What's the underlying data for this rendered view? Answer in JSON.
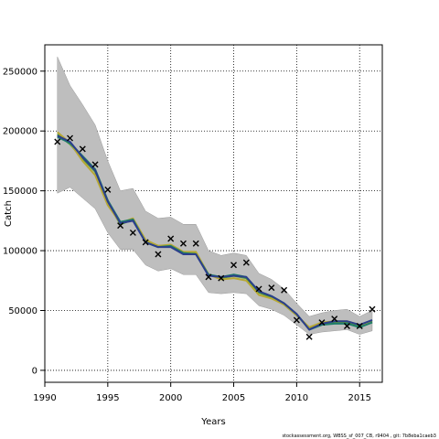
{
  "chart_data": {
    "type": "line",
    "xlabel": "Years",
    "ylabel": "Catch",
    "xlim": [
      1990,
      2016.8
    ],
    "ylim": [
      -10000,
      272000
    ],
    "xticks": [
      1990,
      1995,
      2000,
      2005,
      2010,
      2015
    ],
    "yticks": [
      0,
      50000,
      100000,
      150000,
      200000,
      250000
    ],
    "grid": "dotted",
    "footer": "stockassessment.org, WBSS_sf_007_CB, r9404 , git: 7b8eba1caeb3",
    "band": {
      "x": [
        1991,
        1992,
        1993,
        1994,
        1995,
        1996,
        1997,
        1998,
        1999,
        2000,
        2001,
        2002,
        2003,
        2004,
        2005,
        2006,
        2007,
        2008,
        2009,
        2010,
        2011,
        2012,
        2013,
        2014,
        2015,
        2016
      ],
      "upper": [
        262000,
        238000,
        222000,
        205000,
        175000,
        150000,
        152000,
        133000,
        127000,
        128000,
        122000,
        122000,
        100000,
        96000,
        98000,
        96000,
        81000,
        76000,
        68000,
        56000,
        45000,
        48000,
        50000,
        51000,
        45000,
        50000
      ],
      "lower": [
        148000,
        153000,
        144000,
        135000,
        115000,
        101000,
        101000,
        88000,
        83000,
        85000,
        80000,
        80000,
        65000,
        64000,
        65000,
        64000,
        54000,
        51000,
        46000,
        38000,
        30000,
        32000,
        33000,
        34000,
        30000,
        33000
      ],
      "color": "#bebebe"
    },
    "series": [
      {
        "color": "#4a9a3a",
        "x": [
          1991,
          1992,
          1993,
          1994,
          1995,
          1996,
          1997,
          1998,
          1999,
          2000,
          2001,
          2002,
          2003,
          2004,
          2005,
          2006,
          2007,
          2008,
          2009,
          2010,
          2011,
          2012,
          2013,
          2014,
          2015,
          2016
        ],
        "y": [
          197000,
          189000,
          177000,
          166000,
          140000,
          122000,
          126000,
          108000,
          104000,
          104000,
          98000,
          98000,
          80000,
          77000,
          79000,
          77000,
          65000,
          61000,
          55000,
          46000,
          35000,
          39000,
          40000,
          40000,
          37000,
          41000
        ]
      },
      {
        "color": "#b7a834",
        "x": [
          1991,
          1992,
          1993,
          1994,
          1995,
          1996,
          1997,
          1998,
          1999,
          2000,
          2001,
          2002,
          2003,
          2004,
          2005,
          2006,
          2007,
          2008,
          2009,
          2010,
          2011,
          2012,
          2013,
          2014,
          2015,
          2016
        ],
        "y": [
          199000,
          190000,
          175000,
          163000,
          138000,
          123000,
          127000,
          109000,
          104000,
          105000,
          99000,
          99000,
          80000,
          76000,
          77000,
          75000,
          63000,
          60000,
          55000,
          46000,
          36000,
          40000,
          41000,
          41000,
          38000,
          40000
        ]
      },
      {
        "color": "#1e7d6a",
        "x": [
          1991,
          1992,
          1993,
          1994,
          1995,
          1996,
          1997,
          1998,
          1999,
          2000,
          2001,
          2002,
          2003,
          2004,
          2005,
          2006,
          2007,
          2008,
          2009,
          2010,
          2011,
          2012,
          2013,
          2014,
          2015,
          2016
        ],
        "y": [
          195000,
          190000,
          179000,
          168000,
          142000,
          124000,
          126000,
          107000,
          103000,
          104000,
          98000,
          97000,
          80000,
          78000,
          80000,
          78000,
          66000,
          62000,
          56000,
          47000,
          34000,
          38000,
          39000,
          39000,
          36000,
          40000
        ]
      },
      {
        "color": "#2c3e8c",
        "x": [
          1991,
          1992,
          1993,
          1994,
          1995,
          1996,
          1997,
          1998,
          1999,
          2000,
          2001,
          2002,
          2003,
          2004,
          2005,
          2006,
          2007,
          2008,
          2009,
          2010,
          2011,
          2012,
          2013,
          2014,
          2015,
          2016
        ],
        "y": [
          196000,
          191000,
          178000,
          167000,
          141000,
          123000,
          125000,
          107000,
          103000,
          103000,
          97000,
          97000,
          79000,
          78000,
          79000,
          78000,
          66000,
          62000,
          56000,
          47000,
          34000,
          39000,
          41000,
          41000,
          38000,
          42000
        ]
      }
    ],
    "observed": {
      "marker": "x",
      "x": [
        1991,
        1992,
        1993,
        1994,
        1995,
        1996,
        1997,
        1998,
        1999,
        2000,
        2001,
        2002,
        2003,
        2004,
        2005,
        2006,
        2007,
        2008,
        2009,
        2010,
        2011,
        2012,
        2013,
        2014,
        2015,
        2016
      ],
      "y": [
        191000,
        194000,
        185000,
        172000,
        151000,
        121000,
        115000,
        107000,
        97000,
        110000,
        106000,
        106000,
        78000,
        77000,
        88000,
        90000,
        68000,
        69000,
        67000,
        42000,
        28000,
        40000,
        43000,
        37000,
        37000,
        51000
      ]
    }
  }
}
